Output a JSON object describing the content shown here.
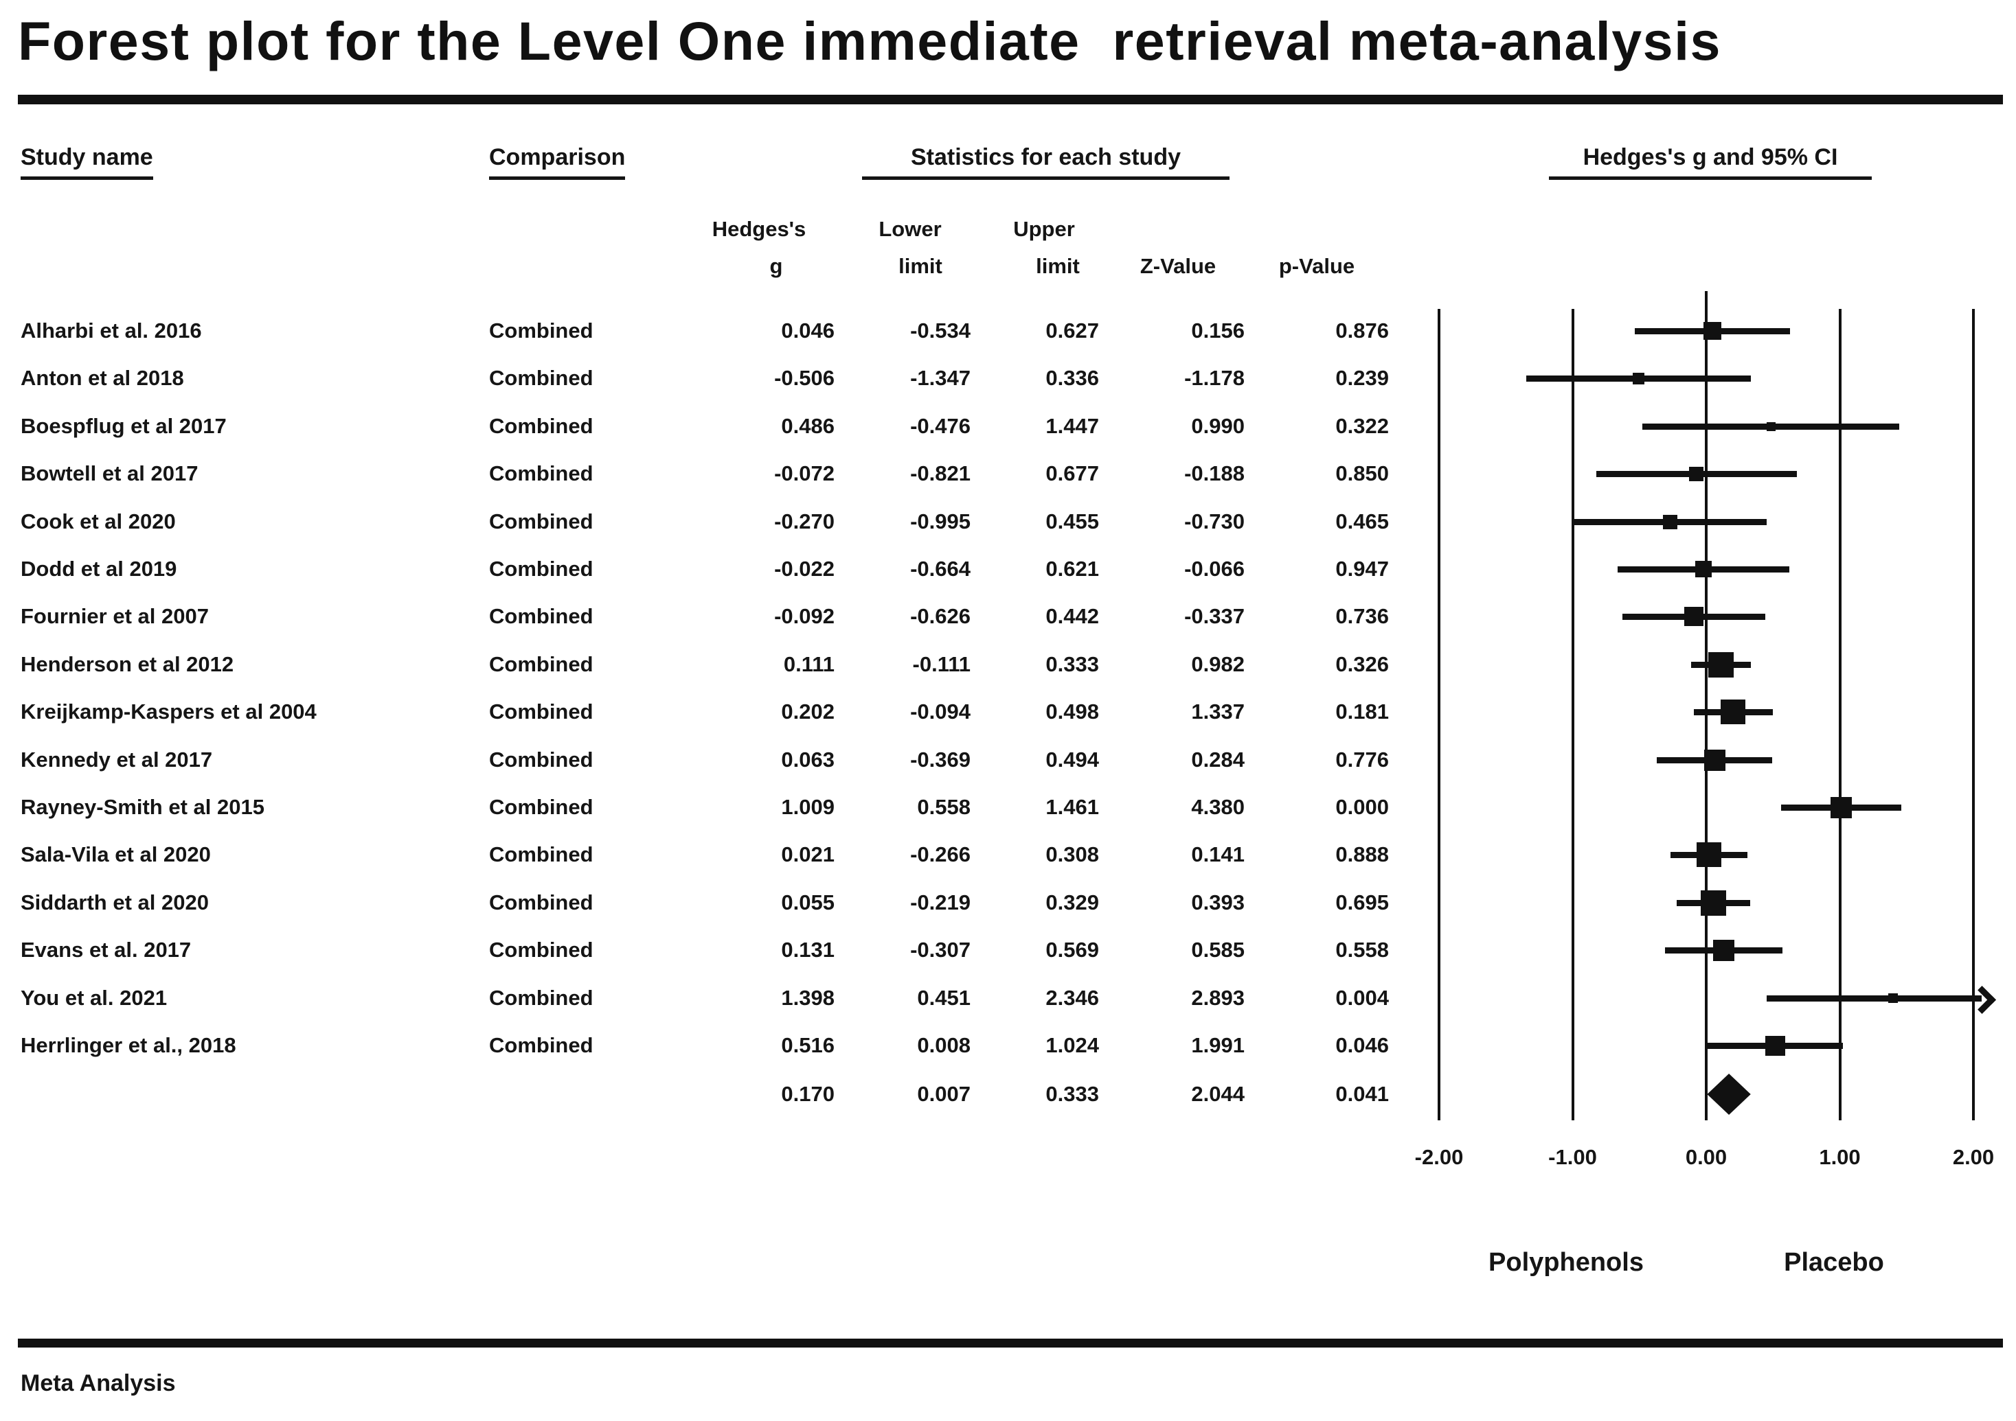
{
  "title": "Forest plot for the Level One immediate  retrieval meta-analysis",
  "table": {
    "headers": {
      "study": "Study name",
      "comparison": "Comparison",
      "stats": "Statistics for each study",
      "plot": "Hedges's g and 95% CI"
    },
    "subheaders": {
      "g_line1": "Hedges's",
      "g_line2": "g",
      "lower_line1": "Lower",
      "lower_line2": "limit",
      "upper_line1": "Upper",
      "upper_line2": "limit",
      "z": "Z-Value",
      "p": "p-Value"
    }
  },
  "chart_data": {
    "type": "forest",
    "effect_measure": "Hedges's g",
    "ci_level": "95% CI",
    "xlim": [
      -2.0,
      2.0
    ],
    "x_ticks": [
      -2.0,
      -1.0,
      0.0,
      1.0,
      2.0
    ],
    "x_tick_labels": [
      "-2.00",
      "-1.00",
      "0.00",
      "1.00",
      "2.00"
    ],
    "left_label": "Polyphenols",
    "right_label": "Placebo",
    "studies": [
      {
        "name": "Alharbi et al. 2016",
        "comparison": "Combined",
        "g": 0.046,
        "lower": -0.534,
        "upper": 0.627,
        "z": 0.156,
        "p": 0.876
      },
      {
        "name": "Anton et al 2018",
        "comparison": "Combined",
        "g": -0.506,
        "lower": -1.347,
        "upper": 0.336,
        "z": -1.178,
        "p": 0.239
      },
      {
        "name": "Boespflug et al 2017",
        "comparison": "Combined",
        "g": 0.486,
        "lower": -0.476,
        "upper": 1.447,
        "z": 0.99,
        "p": 0.322
      },
      {
        "name": "Bowtell et al 2017",
        "comparison": "Combined",
        "g": -0.072,
        "lower": -0.821,
        "upper": 0.677,
        "z": -0.188,
        "p": 0.85
      },
      {
        "name": "Cook et al 2020",
        "comparison": "Combined",
        "g": -0.27,
        "lower": -0.995,
        "upper": 0.455,
        "z": -0.73,
        "p": 0.465
      },
      {
        "name": "Dodd et al 2019",
        "comparison": "Combined",
        "g": -0.022,
        "lower": -0.664,
        "upper": 0.621,
        "z": -0.066,
        "p": 0.947
      },
      {
        "name": "Fournier et al 2007",
        "comparison": "Combined",
        "g": -0.092,
        "lower": -0.626,
        "upper": 0.442,
        "z": -0.337,
        "p": 0.736
      },
      {
        "name": "Henderson et al 2012",
        "comparison": "Combined",
        "g": 0.111,
        "lower": -0.111,
        "upper": 0.333,
        "z": 0.982,
        "p": 0.326
      },
      {
        "name": "Kreijkamp-Kaspers et al 2004",
        "comparison": "Combined",
        "g": 0.202,
        "lower": -0.094,
        "upper": 0.498,
        "z": 1.337,
        "p": 0.181
      },
      {
        "name": "Kennedy et al 2017",
        "comparison": "Combined",
        "g": 0.063,
        "lower": -0.369,
        "upper": 0.494,
        "z": 0.284,
        "p": 0.776
      },
      {
        "name": "Rayney-Smith et al 2015",
        "comparison": "Combined",
        "g": 1.009,
        "lower": 0.558,
        "upper": 1.461,
        "z": 4.38,
        "p": 0.0
      },
      {
        "name": "Sala-Vila et al 2020",
        "comparison": "Combined",
        "g": 0.021,
        "lower": -0.266,
        "upper": 0.308,
        "z": 0.141,
        "p": 0.888
      },
      {
        "name": "Siddarth et al 2020",
        "comparison": "Combined",
        "g": 0.055,
        "lower": -0.219,
        "upper": 0.329,
        "z": 0.393,
        "p": 0.695
      },
      {
        "name": "Evans et al. 2017",
        "comparison": "Combined",
        "g": 0.131,
        "lower": -0.307,
        "upper": 0.569,
        "z": 0.585,
        "p": 0.558
      },
      {
        "name": "You et al. 2021",
        "comparison": "Combined",
        "g": 1.398,
        "lower": 0.451,
        "upper": 2.346,
        "z": 2.893,
        "p": 0.004
      },
      {
        "name": "Herrlinger et al., 2018",
        "comparison": "Combined",
        "g": 0.516,
        "lower": 0.008,
        "upper": 1.024,
        "z": 1.991,
        "p": 0.046
      }
    ],
    "summary": {
      "marker": "diamond",
      "g": 0.17,
      "lower": 0.007,
      "upper": 0.333,
      "z": 2.044,
      "p": 0.041
    }
  },
  "footer": {
    "text": "Meta Analysis"
  }
}
